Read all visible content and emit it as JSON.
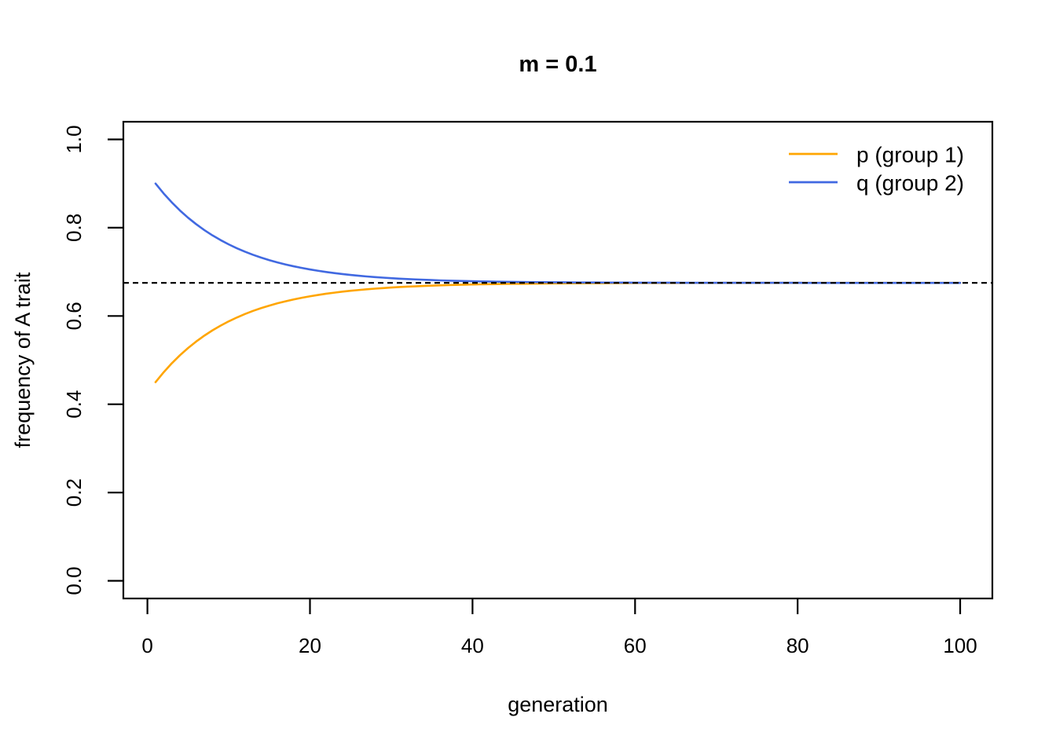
{
  "chart_data": {
    "type": "line",
    "title": "m = 0.1",
    "xlabel": "generation",
    "ylabel": "frequency of A trait",
    "xlim": [
      0,
      100
    ],
    "ylim": [
      0.0,
      1.0
    ],
    "x_ticks": [
      0,
      20,
      40,
      60,
      80,
      100
    ],
    "y_ticks": [
      0.0,
      0.2,
      0.4,
      0.6,
      0.8,
      1.0
    ],
    "y_tick_labels": [
      "0.0",
      "0.2",
      "0.4",
      "0.6",
      "0.8",
      "1.0"
    ],
    "grid": false,
    "legend_position": "top-right",
    "axis_color": "#000000",
    "equilibrium_line": {
      "value": 0.675,
      "style": "dashed",
      "color": "#000000"
    },
    "model": {
      "m": 0.1,
      "p_initial": 0.45,
      "q_initial": 0.9,
      "equilibrium": 0.675,
      "generations": 100
    },
    "x": [
      1,
      2,
      3,
      4,
      5,
      6,
      7,
      8,
      9,
      10,
      11,
      12,
      13,
      14,
      15,
      16,
      17,
      18,
      19,
      20,
      21,
      22,
      23,
      24,
      25,
      26,
      27,
      28,
      29,
      30,
      31,
      32,
      33,
      34,
      35,
      36,
      37,
      38,
      39,
      40,
      41,
      42,
      43,
      44,
      45,
      46,
      47,
      48,
      49,
      50,
      51,
      52,
      53,
      54,
      55,
      56,
      57,
      58,
      59,
      60,
      61,
      62,
      63,
      64,
      65,
      66,
      67,
      68,
      69,
      70,
      71,
      72,
      73,
      74,
      75,
      76,
      77,
      78,
      79,
      80,
      81,
      82,
      83,
      84,
      85,
      86,
      87,
      88,
      89,
      90,
      91,
      92,
      93,
      94,
      95,
      96,
      97,
      98,
      99,
      100
    ],
    "series": [
      {
        "name": "p (group 1)",
        "color": "#FFA500",
        "values": [
          0.45,
          0.4725,
          0.4928,
          0.511,
          0.5274,
          0.5421,
          0.5554,
          0.5674,
          0.5781,
          0.5878,
          0.5965,
          0.6044,
          0.6115,
          0.6178,
          0.6235,
          0.6287,
          0.6333,
          0.6375,
          0.6412,
          0.6446,
          0.6476,
          0.6504,
          0.6528,
          0.6551,
          0.6571,
          0.6588,
          0.6605,
          0.6619,
          0.6632,
          0.6644,
          0.6655,
          0.6664,
          0.6672,
          0.668,
          0.6687,
          0.6694,
          0.6699,
          0.6704,
          0.6709,
          0.6713,
          0.6717,
          0.672,
          0.6723,
          0.6726,
          0.6728,
          0.673,
          0.6732,
          0.6734,
          0.6736,
          0.6737,
          0.6738,
          0.674,
          0.6741,
          0.6742,
          0.6742,
          0.6743,
          0.6744,
          0.6744,
          0.6745,
          0.6746,
          0.6746,
          0.6746,
          0.6747,
          0.6747,
          0.6747,
          0.6748,
          0.6748,
          0.6748,
          0.6748,
          0.6748,
          0.6749,
          0.6749,
          0.6749,
          0.6749,
          0.6749,
          0.6749,
          0.6749,
          0.6749,
          0.6749,
          0.6749,
          0.675,
          0.675,
          0.675,
          0.675,
          0.675,
          0.675,
          0.675,
          0.675,
          0.675,
          0.675,
          0.675,
          0.675,
          0.675,
          0.675,
          0.675,
          0.675,
          0.675,
          0.675,
          0.675,
          0.675
        ]
      },
      {
        "name": "q (group 2)",
        "color": "#4169E1",
        "values": [
          0.9,
          0.8775,
          0.8573,
          0.839,
          0.8226,
          0.8079,
          0.7946,
          0.7826,
          0.7719,
          0.7622,
          0.7535,
          0.7456,
          0.7385,
          0.7322,
          0.7265,
          0.7213,
          0.7167,
          0.7125,
          0.7088,
          0.7054,
          0.7024,
          0.6996,
          0.6972,
          0.6949,
          0.6929,
          0.6912,
          0.6895,
          0.6881,
          0.6868,
          0.6856,
          0.6845,
          0.6836,
          0.6828,
          0.682,
          0.6813,
          0.6806,
          0.6801,
          0.6796,
          0.6791,
          0.6787,
          0.6783,
          0.678,
          0.6777,
          0.6774,
          0.6772,
          0.677,
          0.6768,
          0.6766,
          0.6764,
          0.6763,
          0.6762,
          0.676,
          0.6759,
          0.6758,
          0.6758,
          0.6757,
          0.6756,
          0.6756,
          0.6755,
          0.6754,
          0.6754,
          0.6754,
          0.6753,
          0.6753,
          0.6753,
          0.6752,
          0.6752,
          0.6752,
          0.6752,
          0.6752,
          0.6751,
          0.6751,
          0.6751,
          0.6751,
          0.6751,
          0.6751,
          0.6751,
          0.6751,
          0.6751,
          0.6751,
          0.675,
          0.675,
          0.675,
          0.675,
          0.675,
          0.675,
          0.675,
          0.675,
          0.675,
          0.675,
          0.675,
          0.675,
          0.675,
          0.675,
          0.675,
          0.675,
          0.675,
          0.675,
          0.675,
          0.675
        ]
      }
    ]
  }
}
